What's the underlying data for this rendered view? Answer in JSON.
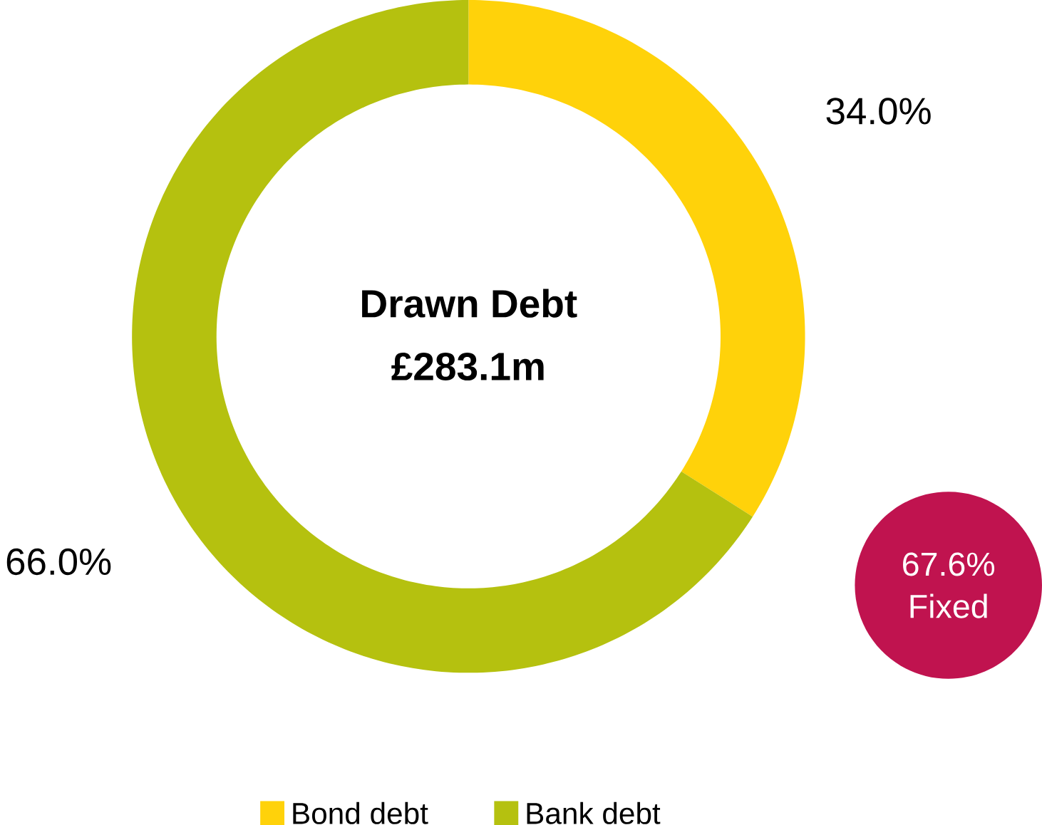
{
  "chart_data": {
    "type": "donut",
    "title": "Drawn Debt",
    "subtitle": "£283.1m",
    "categories": [
      "Bond debt",
      "Bank debt"
    ],
    "values": [
      34.0,
      66.0
    ],
    "colors": [
      "#ffd20a",
      "#b5c10f"
    ],
    "value_labels": [
      "34.0%",
      "66.0%"
    ],
    "annotations": [
      "67.6% Fixed"
    ],
    "legend": "bottom"
  }
}
